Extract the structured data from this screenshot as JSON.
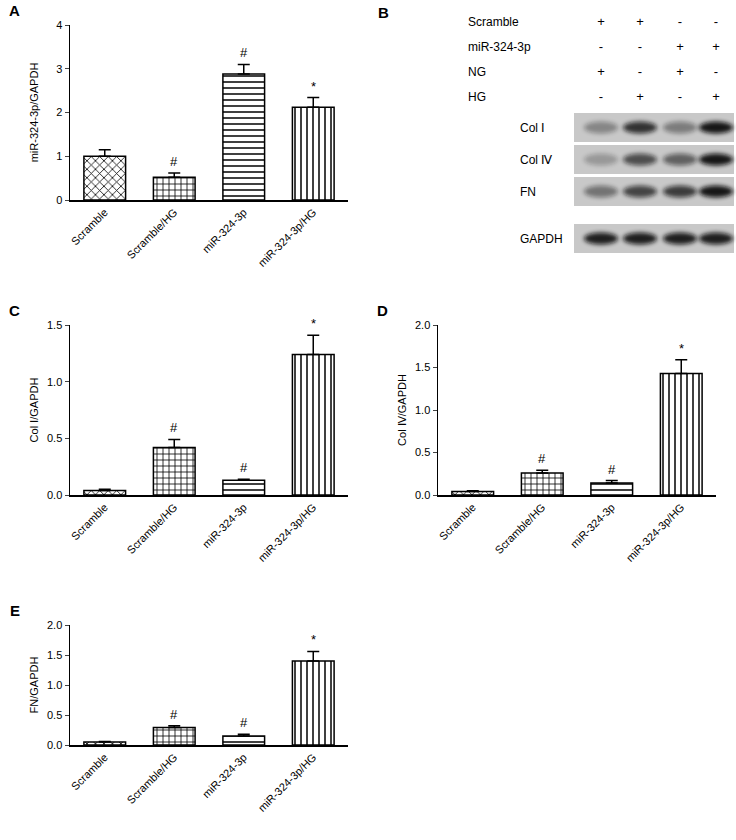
{
  "chart_data": [
    {
      "type": "bar",
      "title": "A",
      "categories": [
        "Scramble",
        "Scramble/HG",
        "miR-324-3p",
        "miR-324-3p/HG"
      ],
      "values": [
        1.0,
        0.52,
        2.88,
        2.12
      ],
      "errors": [
        0.15,
        0.1,
        0.22,
        0.22
      ],
      "color": "#000000",
      "y_label": "miR-324-3p/GAPDH",
      "ylim": [
        0,
        4
      ],
      "yticks": [
        0,
        1,
        2,
        3,
        4
      ],
      "grid": false,
      "annotations": [
        {
          "category": "Scramble/HG",
          "text": "#"
        },
        {
          "category": "miR-324-3p",
          "text": "#"
        },
        {
          "category": "miR-324-3p/HG",
          "text": "*"
        }
      ]
    },
    {
      "type": "bar",
      "title": "C",
      "categories": [
        "Scramble",
        "Scramble/HG",
        "miR-324-3p",
        "miR-324-3p/HG"
      ],
      "values": [
        0.04,
        0.42,
        0.13,
        1.24
      ],
      "errors": [
        0.01,
        0.07,
        0.01,
        0.17
      ],
      "color": "#000000",
      "y_label": "Col Ⅰ/GAPDH",
      "ylim": [
        0,
        1.5
      ],
      "yticks": [
        {
          "value": 0,
          "label": "0.0"
        },
        0.5,
        {
          "value": 1,
          "label": "1.0"
        },
        1.5
      ],
      "grid": false,
      "annotations": [
        {
          "category": "Scramble/HG",
          "text": "#"
        },
        {
          "category": "miR-324-3p",
          "text": "#"
        },
        {
          "category": "miR-324-3p/HG",
          "text": "*"
        }
      ]
    },
    {
      "type": "bar",
      "title": "D",
      "categories": [
        "Scramble",
        "Scramble/HG",
        "miR-324-3p",
        "miR-324-3p/HG"
      ],
      "values": [
        0.04,
        0.26,
        0.14,
        1.43
      ],
      "errors": [
        0.01,
        0.03,
        0.03,
        0.16
      ],
      "color": "#000000",
      "y_label": "Col Ⅳ/GAPDH",
      "ylim": [
        0,
        2
      ],
      "yticks": [
        {
          "value": 0,
          "label": "0.0"
        },
        0.5,
        {
          "value": 1,
          "label": "1.0"
        },
        1.5,
        {
          "value": 2,
          "label": "2.0"
        }
      ],
      "grid": false,
      "annotations": [
        {
          "category": "Scramble/HG",
          "text": "#"
        },
        {
          "category": "miR-324-3p",
          "text": "#"
        },
        {
          "category": "miR-324-3p/HG",
          "text": "*"
        }
      ]
    },
    {
      "type": "bar",
      "title": "E",
      "categories": [
        "Scramble",
        "Scramble/HG",
        "miR-324-3p",
        "miR-324-3p/HG"
      ],
      "values": [
        0.05,
        0.29,
        0.15,
        1.4
      ],
      "errors": [
        0.01,
        0.03,
        0.03,
        0.16
      ],
      "color": "#000000",
      "y_label": "FN/GAPDH",
      "ylim": [
        0,
        2
      ],
      "yticks": [
        {
          "value": 0,
          "label": "0.0"
        },
        0.5,
        {
          "value": 1,
          "label": "1.0"
        },
        1.5,
        {
          "value": 2,
          "label": "2.0"
        }
      ],
      "grid": false,
      "annotations": [
        {
          "category": "Scramble/HG",
          "text": "#"
        },
        {
          "category": "miR-324-3p",
          "text": "#"
        },
        {
          "category": "miR-324-3p/HG",
          "text": "*"
        }
      ]
    }
  ],
  "blot": {
    "title": "B",
    "conditions": [
      {
        "label": "Scramble",
        "lanes": [
          "+",
          "+",
          "-",
          "-"
        ]
      },
      {
        "label": "miR-324-3p",
        "lanes": [
          "-",
          "-",
          "+",
          "+"
        ]
      },
      {
        "label": "NG",
        "lanes": [
          "+",
          "-",
          "+",
          "-"
        ]
      },
      {
        "label": "HG",
        "lanes": [
          "-",
          "+",
          "-",
          "+"
        ]
      }
    ],
    "bands": [
      {
        "label": "Col Ⅰ",
        "intensity": [
          0.35,
          0.8,
          0.4,
          0.95
        ]
      },
      {
        "label": "Col Ⅳ",
        "intensity": [
          0.25,
          0.65,
          0.55,
          0.95
        ]
      },
      {
        "label": "FN",
        "intensity": [
          0.45,
          0.7,
          0.75,
          0.95
        ]
      },
      {
        "label": "GAPDH",
        "intensity": [
          0.9,
          0.9,
          0.9,
          0.9
        ]
      }
    ]
  }
}
